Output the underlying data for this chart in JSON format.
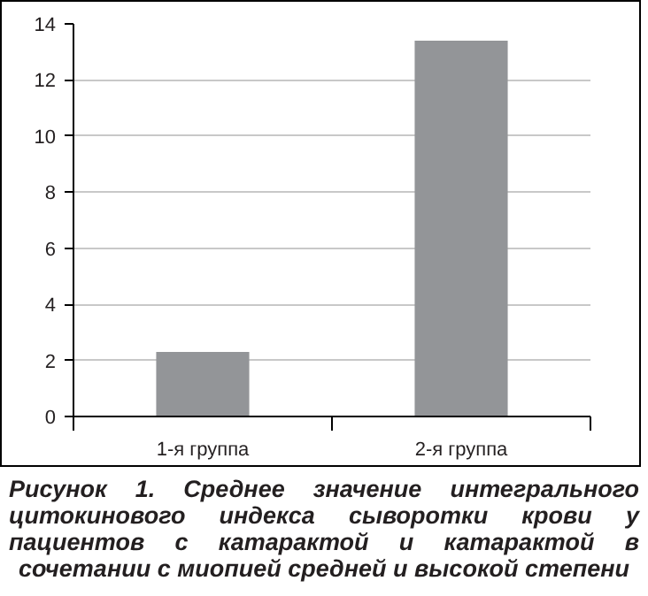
{
  "chart_data": {
    "type": "bar",
    "categories": [
      "1-я группа",
      "2-я группа"
    ],
    "values": [
      2.3,
      13.4
    ],
    "color": "#939598",
    "ylim": [
      0,
      14
    ],
    "yticks": [
      0,
      2,
      4,
      6,
      8,
      10,
      12,
      14
    ],
    "grid": "y",
    "annotations": [
      "Рисунок 1. Среднее значение интегрального цитокинового индекса сыворотки крови у пациентов с катарактой и катарактой в сочетании с миопией средней и высокой степени"
    ]
  }
}
